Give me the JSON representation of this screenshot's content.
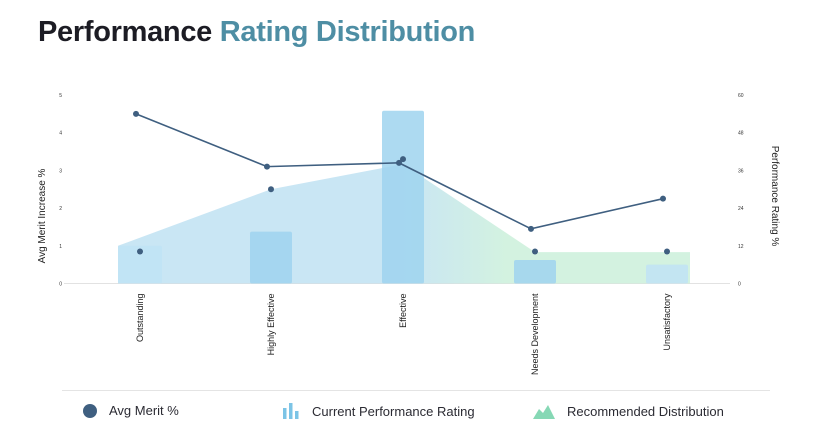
{
  "title": {
    "part1": "Performance",
    "part2": "Rating Distribution"
  },
  "colors": {
    "title_dark": "#1c1c24",
    "title_accent": "#4e8ea4",
    "merit_line": "#3f5f80",
    "current_bar": "#9fd3ee",
    "current_bar_alt": "#bfe3f5",
    "recommended_left": "#b7ddf0",
    "recommended_right": "#c8efd8"
  },
  "legend": {
    "merit": "Avg Merit %",
    "current": "Current Performance Rating",
    "recommended": "Recommended Distribution",
    "merit_icon": "dot-icon",
    "current_icon": "bar-chart-icon",
    "recommended_icon": "area-chart-icon"
  },
  "chart_data": {
    "type": "combo",
    "categories": [
      "Outstanding",
      "Highly Effective",
      "Effective",
      "Needs Development",
      "Unsatisfactory"
    ],
    "y_left": {
      "label": "Avg Merit Increase %",
      "min": 0,
      "max": 5,
      "ticks": [
        "0",
        "1",
        "2",
        "3",
        "4",
        "5"
      ]
    },
    "y_right": {
      "label": "Performance Rating %",
      "min": 0,
      "max": 60,
      "ticks": [
        "0",
        "12",
        "24",
        "36",
        "48",
        "60"
      ]
    },
    "series": [
      {
        "name": "Current Performance Rating",
        "kind": "bar",
        "axis": "right",
        "values": [
          12,
          16.5,
          55,
          7.5,
          6
        ]
      },
      {
        "name": "Recommended Distribution",
        "kind": "area",
        "axis": "right",
        "values": [
          12,
          30,
          38,
          10,
          10
        ]
      },
      {
        "name": "Avg Merit %",
        "kind": "line",
        "axis": "left",
        "values": [
          4.5,
          3.1,
          3.2,
          1.45,
          2.25
        ]
      },
      {
        "name": "Avg Merit %",
        "kind": "points",
        "axis": "left",
        "values": [
          0.85,
          2.5,
          3.3,
          0.85,
          0.85
        ]
      }
    ],
    "grid": false,
    "legend_position": "bottom"
  }
}
